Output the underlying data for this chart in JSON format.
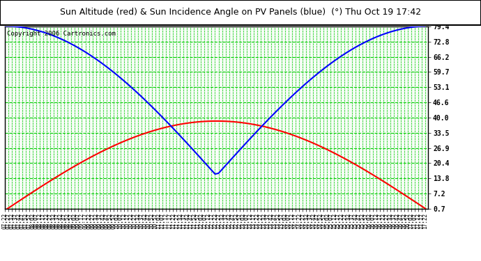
{
  "title": "Sun Altitude (red) & Sun Incidence Angle on PV Panels (blue)  (°) Thu Oct 19 17:42",
  "copyright": "Copyright 2006 Cartronics.com",
  "yticks": [
    0.7,
    7.2,
    13.8,
    20.4,
    26.9,
    33.5,
    40.0,
    46.6,
    53.1,
    59.7,
    66.2,
    72.8,
    79.4
  ],
  "ymin": 0.7,
  "ymax": 79.4,
  "plot_bg": "#ffffff",
  "fig_bg": "#ffffff",
  "grid_color": "#00cc00",
  "red_line_color": "#ff0000",
  "blue_line_color": "#0000ff",
  "x_start_hour": 7,
  "x_start_min": 22,
  "x_end_hour": 17,
  "x_end_min": 26,
  "x_step_min": 5,
  "red_peak": 38.5,
  "blue_min": 15.0,
  "blue_max": 79.4
}
